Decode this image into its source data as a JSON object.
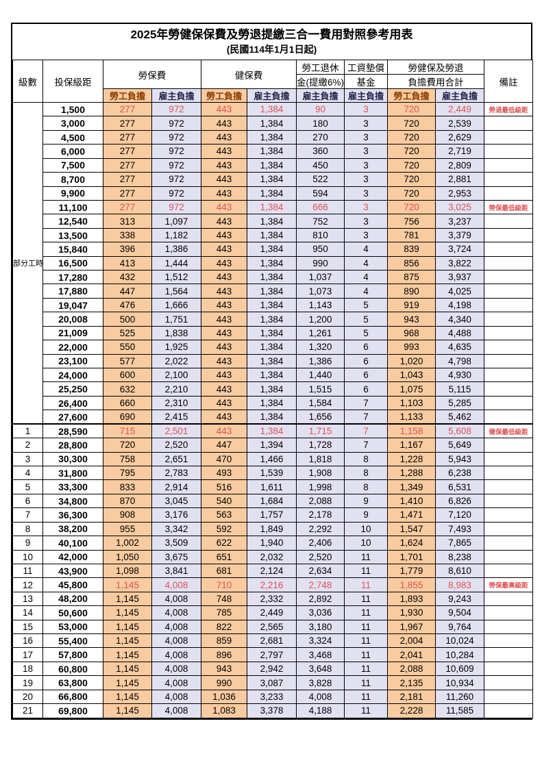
{
  "title": "2025年勞健保保費及勞退提繳三合一費用對照參考用表",
  "subtitle": "(民國114年1月1日起)",
  "header": {
    "level": "級數",
    "bracket": "投保級距",
    "labor_insurance": "勞保費",
    "health_insurance": "健保費",
    "pension_line1": "勞工退休",
    "pension_line2": "金(提繳6%)",
    "wage_fund_line1": "工資墊償",
    "wage_fund_line2": "基金",
    "total_line1": "勞健保及勞退",
    "total_line2": "負擔費用合計",
    "employee": "勞工負擔",
    "employer": "雇主負擔",
    "remark": "備註"
  },
  "part_time_label": "部分工時",
  "part_time_span": 23,
  "colors": {
    "employee_bg": "#f8cba0",
    "employer_bg": "#e2e1f2",
    "highlight_red": "#e05252",
    "employee_header_text": "#8d3c00",
    "employer_header_text": "#26264d",
    "grid": "#000000"
  },
  "rows": [
    {
      "level": null,
      "bracket": "1,500",
      "cells": [
        "277",
        "972",
        "443",
        "1,384",
        "90",
        "3",
        "720",
        "2,449"
      ],
      "remark": "勞退最低級距",
      "highlight": true
    },
    {
      "level": null,
      "bracket": "3,000",
      "cells": [
        "277",
        "972",
        "443",
        "1,384",
        "180",
        "3",
        "720",
        "2,539"
      ],
      "remark": ""
    },
    {
      "level": null,
      "bracket": "4,500",
      "cells": [
        "277",
        "972",
        "443",
        "1,384",
        "270",
        "3",
        "720",
        "2,629"
      ],
      "remark": ""
    },
    {
      "level": null,
      "bracket": "6,000",
      "cells": [
        "277",
        "972",
        "443",
        "1,384",
        "360",
        "3",
        "720",
        "2,719"
      ],
      "remark": ""
    },
    {
      "level": null,
      "bracket": "7,500",
      "cells": [
        "277",
        "972",
        "443",
        "1,384",
        "450",
        "3",
        "720",
        "2,809"
      ],
      "remark": ""
    },
    {
      "level": null,
      "bracket": "8,700",
      "cells": [
        "277",
        "972",
        "443",
        "1,384",
        "522",
        "3",
        "720",
        "2,881"
      ],
      "remark": ""
    },
    {
      "level": null,
      "bracket": "9,900",
      "cells": [
        "277",
        "972",
        "443",
        "1,384",
        "594",
        "3",
        "720",
        "2,953"
      ],
      "remark": ""
    },
    {
      "level": null,
      "bracket": "11,100",
      "cells": [
        "277",
        "972",
        "443",
        "1,384",
        "666",
        "3",
        "720",
        "3,025"
      ],
      "remark": "勞保最低級距",
      "highlight": true
    },
    {
      "level": null,
      "bracket": "12,540",
      "cells": [
        "313",
        "1,097",
        "443",
        "1,384",
        "752",
        "3",
        "756",
        "3,237"
      ],
      "remark": ""
    },
    {
      "level": null,
      "bracket": "13,500",
      "cells": [
        "338",
        "1,182",
        "443",
        "1,384",
        "810",
        "3",
        "781",
        "3,379"
      ],
      "remark": ""
    },
    {
      "level": null,
      "bracket": "15,840",
      "cells": [
        "396",
        "1,386",
        "443",
        "1,384",
        "950",
        "4",
        "839",
        "3,724"
      ],
      "remark": ""
    },
    {
      "level": null,
      "bracket": "16,500",
      "cells": [
        "413",
        "1,444",
        "443",
        "1,384",
        "990",
        "4",
        "856",
        "3,822"
      ],
      "remark": ""
    },
    {
      "level": null,
      "bracket": "17,280",
      "cells": [
        "432",
        "1,512",
        "443",
        "1,384",
        "1,037",
        "4",
        "875",
        "3,937"
      ],
      "remark": ""
    },
    {
      "level": null,
      "bracket": "17,880",
      "cells": [
        "447",
        "1,564",
        "443",
        "1,384",
        "1,073",
        "4",
        "890",
        "4,025"
      ],
      "remark": ""
    },
    {
      "level": null,
      "bracket": "19,047",
      "cells": [
        "476",
        "1,666",
        "443",
        "1,384",
        "1,143",
        "5",
        "919",
        "4,198"
      ],
      "remark": ""
    },
    {
      "level": null,
      "bracket": "20,008",
      "cells": [
        "500",
        "1,751",
        "443",
        "1,384",
        "1,200",
        "5",
        "943",
        "4,340"
      ],
      "remark": ""
    },
    {
      "level": null,
      "bracket": "21,009",
      "cells": [
        "525",
        "1,838",
        "443",
        "1,384",
        "1,261",
        "5",
        "968",
        "4,488"
      ],
      "remark": ""
    },
    {
      "level": null,
      "bracket": "22,000",
      "cells": [
        "550",
        "1,925",
        "443",
        "1,384",
        "1,320",
        "6",
        "993",
        "4,635"
      ],
      "remark": ""
    },
    {
      "level": null,
      "bracket": "23,100",
      "cells": [
        "577",
        "2,022",
        "443",
        "1,384",
        "1,386",
        "6",
        "1,020",
        "4,798"
      ],
      "remark": ""
    },
    {
      "level": null,
      "bracket": "24,000",
      "cells": [
        "600",
        "2,100",
        "443",
        "1,384",
        "1,440",
        "6",
        "1,043",
        "4,930"
      ],
      "remark": ""
    },
    {
      "level": null,
      "bracket": "25,250",
      "cells": [
        "632",
        "2,210",
        "443",
        "1,384",
        "1,515",
        "6",
        "1,075",
        "5,115"
      ],
      "remark": ""
    },
    {
      "level": null,
      "bracket": "26,400",
      "cells": [
        "660",
        "2,310",
        "443",
        "1,384",
        "1,584",
        "7",
        "1,103",
        "5,285"
      ],
      "remark": ""
    },
    {
      "level": null,
      "bracket": "27,600",
      "cells": [
        "690",
        "2,415",
        "443",
        "1,384",
        "1,656",
        "7",
        "1,133",
        "5,462"
      ],
      "remark": ""
    },
    {
      "level": "1",
      "bracket": "28,590",
      "cells": [
        "715",
        "2,501",
        "443",
        "1,384",
        "1,715",
        "7",
        "1,158",
        "5,608"
      ],
      "remark": "健保最低級距",
      "highlight": true,
      "section": true
    },
    {
      "level": "2",
      "bracket": "28,800",
      "cells": [
        "720",
        "2,520",
        "447",
        "1,394",
        "1,728",
        "7",
        "1,167",
        "5,649"
      ],
      "remark": ""
    },
    {
      "level": "3",
      "bracket": "30,300",
      "cells": [
        "758",
        "2,651",
        "470",
        "1,466",
        "1,818",
        "8",
        "1,228",
        "5,943"
      ],
      "remark": ""
    },
    {
      "level": "4",
      "bracket": "31,800",
      "cells": [
        "795",
        "2,783",
        "493",
        "1,539",
        "1,908",
        "8",
        "1,288",
        "6,238"
      ],
      "remark": ""
    },
    {
      "level": "5",
      "bracket": "33,300",
      "cells": [
        "833",
        "2,914",
        "516",
        "1,611",
        "1,998",
        "8",
        "1,349",
        "6,531"
      ],
      "remark": ""
    },
    {
      "level": "6",
      "bracket": "34,800",
      "cells": [
        "870",
        "3,045",
        "540",
        "1,684",
        "2,088",
        "9",
        "1,410",
        "6,826"
      ],
      "remark": ""
    },
    {
      "level": "7",
      "bracket": "36,300",
      "cells": [
        "908",
        "3,176",
        "563",
        "1,757",
        "2,178",
        "9",
        "1,471",
        "7,120"
      ],
      "remark": ""
    },
    {
      "level": "8",
      "bracket": "38,200",
      "cells": [
        "955",
        "3,342",
        "592",
        "1,849",
        "2,292",
        "10",
        "1,547",
        "7,493"
      ],
      "remark": ""
    },
    {
      "level": "9",
      "bracket": "40,100",
      "cells": [
        "1,002",
        "3,509",
        "622",
        "1,940",
        "2,406",
        "10",
        "1,624",
        "7,865"
      ],
      "remark": ""
    },
    {
      "level": "10",
      "bracket": "42,000",
      "cells": [
        "1,050",
        "3,675",
        "651",
        "2,032",
        "2,520",
        "11",
        "1,701",
        "8,238"
      ],
      "remark": ""
    },
    {
      "level": "11",
      "bracket": "43,900",
      "cells": [
        "1,098",
        "3,841",
        "681",
        "2,124",
        "2,634",
        "11",
        "1,779",
        "8,610"
      ],
      "remark": ""
    },
    {
      "level": "12",
      "bracket": "45,800",
      "cells": [
        "1,145",
        "4,008",
        "710",
        "2,216",
        "2,748",
        "11",
        "1,855",
        "8,983"
      ],
      "remark": "勞保最高級距",
      "highlight": true
    },
    {
      "level": "13",
      "bracket": "48,200",
      "cells": [
        "1,145",
        "4,008",
        "748",
        "2,332",
        "2,892",
        "11",
        "1,893",
        "9,243"
      ],
      "remark": ""
    },
    {
      "level": "14",
      "bracket": "50,600",
      "cells": [
        "1,145",
        "4,008",
        "785",
        "2,449",
        "3,036",
        "11",
        "1,930",
        "9,504"
      ],
      "remark": ""
    },
    {
      "level": "15",
      "bracket": "53,000",
      "cells": [
        "1,145",
        "4,008",
        "822",
        "2,565",
        "3,180",
        "11",
        "1,967",
        "9,764"
      ],
      "remark": ""
    },
    {
      "level": "16",
      "bracket": "55,400",
      "cells": [
        "1,145",
        "4,008",
        "859",
        "2,681",
        "3,324",
        "11",
        "2,004",
        "10,024"
      ],
      "remark": ""
    },
    {
      "level": "17",
      "bracket": "57,800",
      "cells": [
        "1,145",
        "4,008",
        "896",
        "2,797",
        "3,468",
        "11",
        "2,041",
        "10,284"
      ],
      "remark": ""
    },
    {
      "level": "18",
      "bracket": "60,800",
      "cells": [
        "1,145",
        "4,008",
        "943",
        "2,942",
        "3,648",
        "11",
        "2,088",
        "10,609"
      ],
      "remark": ""
    },
    {
      "level": "19",
      "bracket": "63,800",
      "cells": [
        "1,145",
        "4,008",
        "990",
        "3,087",
        "3,828",
        "11",
        "2,135",
        "10,934"
      ],
      "remark": ""
    },
    {
      "level": "20",
      "bracket": "66,800",
      "cells": [
        "1,145",
        "4,008",
        "1,036",
        "3,233",
        "4,008",
        "11",
        "2,181",
        "11,260"
      ],
      "remark": ""
    },
    {
      "level": "21",
      "bracket": "69,800",
      "cells": [
        "1,145",
        "4,008",
        "1,083",
        "3,378",
        "4,188",
        "11",
        "2,228",
        "11,585"
      ],
      "remark": ""
    }
  ]
}
